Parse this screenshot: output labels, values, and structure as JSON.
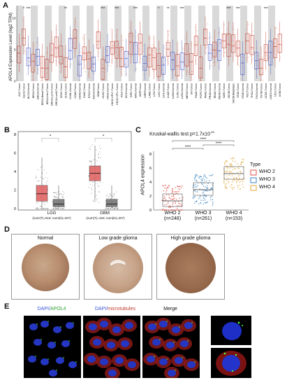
{
  "panels": {
    "a_letter": "A",
    "b_letter": "B",
    "c_letter": "C",
    "d_letter": "D",
    "e_letter": "E"
  },
  "panel_a": {
    "ylabel": "APOL4 Expression Level (log2 TPM)",
    "yticks": [
      "0",
      "5",
      "10"
    ],
    "significance_marks": [
      "*",
      "***",
      "**",
      "***",
      "***",
      "***",
      "*",
      "**",
      "***",
      "***",
      "***",
      "***"
    ],
    "categories": [
      "ACC.Tumor",
      "BLCA.Tumor",
      "BLCA.Normal",
      "BRCA.Tumor",
      "BRCA.Normal",
      "BRCA.Basal.Tumor",
      "BRCA.Her2.Tumor",
      "BRCA.LumA.Tumor",
      "BRCA.LumB.Tumor",
      "CESC.Tumor",
      "CHOL.Tumor",
      "CHOL.Normal",
      "COAD.Tumor",
      "COAD.Normal",
      "DLBC.Tumor",
      "ESCA.Tumor",
      "ESCA.Normal",
      "GBM.Tumor",
      "HNSC.Tumor",
      "HNSC.Normal",
      "HNSC.HPV+.Tumor",
      "HNSC.HPV-.Tumor",
      "KICH.Tumor",
      "KICH.Normal",
      "KIRC.Tumor",
      "KIRC.Normal",
      "KIRP.Tumor",
      "KIRP.Normal",
      "LAML.Tumor",
      "LGG.Tumor",
      "LIHC.Tumor",
      "LIHC.Normal",
      "LUAD.Tumor",
      "LUAD.Normal",
      "LUSC.Tumor",
      "LUSC.Normal",
      "MESO.Tumor",
      "OV.Tumor",
      "PAAD.Tumor",
      "PCPG.Tumor",
      "PRAD.Tumor",
      "PRAD.Normal",
      "READ.Tumor",
      "READ.Normal",
      "SARC.Tumor",
      "SKCM.Tumor",
      "SKCM.Metastasis",
      "STAD.Tumor",
      "STAD.Normal",
      "TGCT.Tumor",
      "THCA.Tumor",
      "THCA.Normal",
      "THYM.Tumor",
      "UCEC.Tumor",
      "UCEC.Normal",
      "UCS.Tumor",
      "UVM.Tumor"
    ]
  },
  "panel_b": {
    "yticks": [
      "0",
      "2",
      "4",
      "6",
      "8"
    ],
    "groups": [
      {
        "name": "LGG",
        "detail": "(num(T)=518; num(N)=207)"
      },
      {
        "name": "GBM",
        "detail": "(num(T)=163; num(N)=207)"
      }
    ],
    "significance_mark": "*"
  },
  "panel_c": {
    "title": "Kruskal-wallis test p=1.7x10",
    "title_exp": "-48",
    "ylabel": "APOL4 expression",
    "yticks": [
      "0",
      "2",
      "4",
      "6",
      "8"
    ],
    "groups": [
      {
        "name": "WHO 2",
        "n": "(n=248)"
      },
      {
        "name": "WHO 3",
        "n": "(n=261)"
      },
      {
        "name": "WHO 4",
        "n": "(n=153)"
      }
    ],
    "significance": [
      "****",
      "****",
      "****"
    ],
    "legend_title": "Type",
    "legend": [
      "WHO 2",
      "WHO 3",
      "WHO 4"
    ],
    "colors": {
      "who2": "#e0524a",
      "who3": "#3d86c6",
      "who4": "#e3a93a"
    }
  },
  "panel_d": {
    "captions": [
      "Normal",
      "Low grade glioma",
      "High grade glioma"
    ]
  },
  "panel_e": {
    "titles": {
      "dapi": "DAPI/",
      "apol4": "APOL4",
      "dapi2": "DAPI/",
      "micro": "microtubules",
      "merge": "Merge"
    }
  },
  "chart_data": [
    {
      "type": "bar",
      "title": "",
      "ylabel": "APOL4 Expression Level (log2 TPM)",
      "ylim": [
        0,
        12
      ],
      "note": "Panel A: pan-cancer box plots across TCGA tumor/normal categories"
    },
    {
      "type": "bar",
      "categories": [
        "LGG",
        "GBM"
      ],
      "series": [
        {
          "name": "Tumor",
          "values": [
            1.6,
            3.8
          ]
        },
        {
          "name": "Normal",
          "values": [
            0.5,
            0.5
          ]
        }
      ],
      "ylim": [
        0,
        8
      ]
    },
    {
      "type": "bar",
      "title": "Kruskal-wallis test p=1.7x10-48",
      "categories": [
        "WHO 2",
        "WHO 3",
        "WHO 4"
      ],
      "values": [
        1.3,
        2.9,
        5.2
      ],
      "ylabel": "APOL4 expression",
      "ylim": [
        0,
        8
      ]
    }
  ]
}
